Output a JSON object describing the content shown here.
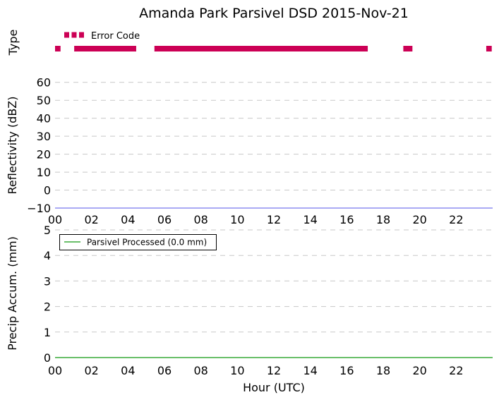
{
  "chart_data": [
    {
      "type": "bar",
      "title": "Amanda Park Parsivel DSD 2015-Nov-21",
      "ylabel": "Type",
      "xlim": [
        0,
        24
      ],
      "legend": {
        "placement": "top-left",
        "entries": [
          "Error Code"
        ]
      },
      "series": [
        {
          "name": "Error Code",
          "color": "#cc0055",
          "intervals_hours": [
            [
              0.0,
              0.3
            ],
            [
              1.05,
              4.45
            ],
            [
              5.45,
              17.15
            ],
            [
              19.1,
              19.6
            ],
            [
              23.65,
              23.95
            ]
          ]
        }
      ]
    },
    {
      "type": "line",
      "ylabel": "Reflectivity (dBZ)",
      "xlim": [
        0,
        24
      ],
      "ylim": [
        -10,
        65
      ],
      "yticks": [
        "60",
        "50",
        "40",
        "30",
        "20",
        "10",
        "0",
        "−10"
      ],
      "ytick_values": [
        60,
        50,
        40,
        30,
        20,
        10,
        0,
        -10
      ],
      "xticks": [
        "00",
        "02",
        "04",
        "06",
        "08",
        "10",
        "12",
        "14",
        "16",
        "18",
        "20",
        "22"
      ],
      "xtick_values": [
        0,
        2,
        4,
        6,
        8,
        10,
        12,
        14,
        16,
        18,
        20,
        22
      ],
      "grid": "horizontal dashed",
      "series": [
        {
          "color": "#7777ee",
          "x": [
            0,
            24
          ],
          "y": [
            -10,
            -10
          ]
        }
      ]
    },
    {
      "type": "line",
      "ylabel": "Precip Accum. (mm)",
      "xlabel": "Hour (UTC)",
      "xlim": [
        0,
        24
      ],
      "ylim": [
        0,
        5
      ],
      "yticks": [
        "5",
        "4",
        "3",
        "2",
        "1",
        "0"
      ],
      "ytick_values": [
        5,
        4,
        3,
        2,
        1,
        0
      ],
      "xticks": [
        "00",
        "02",
        "04",
        "06",
        "08",
        "10",
        "12",
        "14",
        "16",
        "18",
        "20",
        "22"
      ],
      "xtick_values": [
        0,
        2,
        4,
        6,
        8,
        10,
        12,
        14,
        16,
        18,
        20,
        22
      ],
      "grid": "horizontal dashed",
      "legend": {
        "placement": "top-left",
        "entries": [
          "Parsivel Processed (0.0 mm)"
        ]
      },
      "series": [
        {
          "name": "Parsivel Processed (0.0 mm)",
          "color": "#119911",
          "x": [
            0,
            24
          ],
          "y": [
            0,
            0
          ]
        }
      ]
    }
  ]
}
